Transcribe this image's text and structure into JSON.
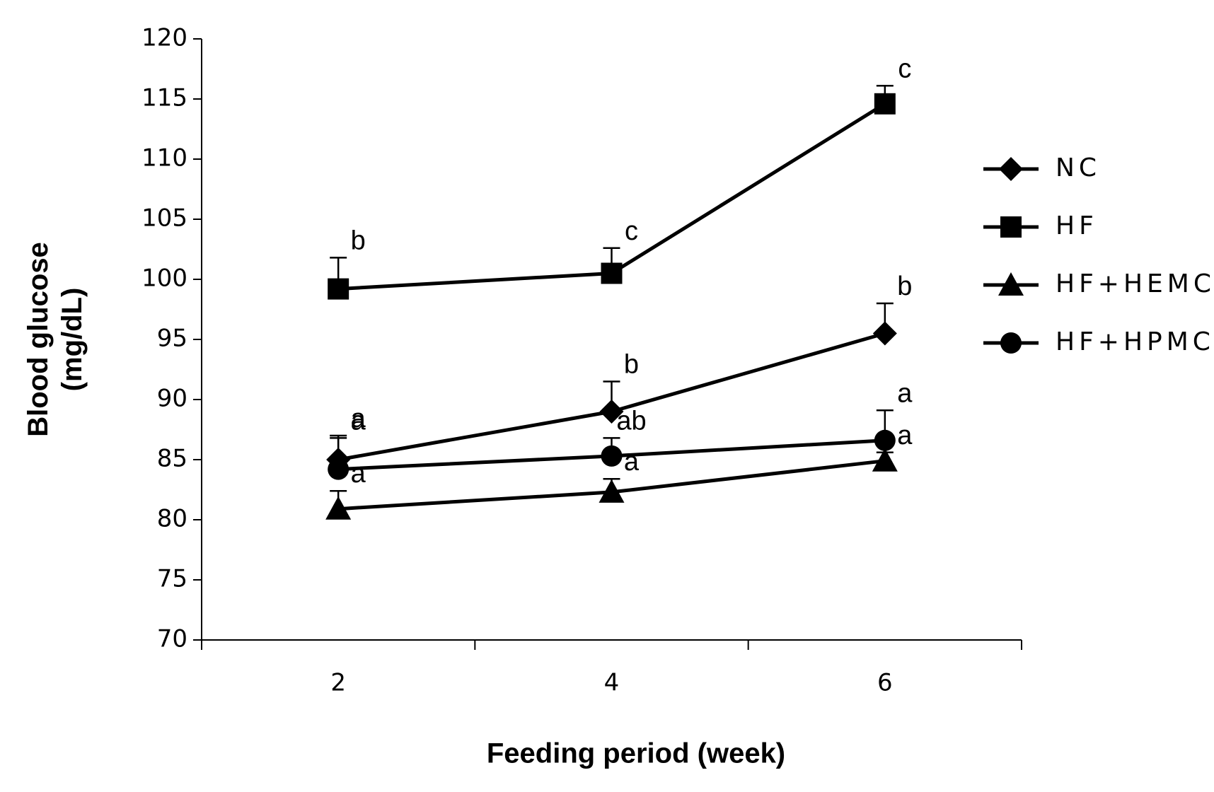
{
  "chart_data": {
    "type": "line",
    "y_label": "Blood glucose\n(mg/dL)",
    "x_label": "Feeding period (week)",
    "categories": [
      "2",
      "4",
      "6"
    ],
    "ylim": [
      70,
      120
    ],
    "yticks": [
      70,
      75,
      80,
      85,
      90,
      95,
      100,
      105,
      110,
      115,
      120
    ],
    "legend": "right",
    "series": [
      {
        "name": "NC",
        "color": "#000000",
        "marker": "diamond",
        "values": [
          85.0,
          89.0,
          95.5
        ],
        "errors": [
          2.0,
          2.5,
          2.5
        ],
        "labels": [
          "a",
          "b",
          "b"
        ]
      },
      {
        "name": "HF",
        "color": "#000000",
        "marker": "square",
        "values": [
          99.2,
          100.5,
          114.6
        ],
        "errors": [
          2.6,
          2.1,
          1.5
        ],
        "labels": [
          "b",
          "c",
          "c"
        ]
      },
      {
        "name": "HF+HEMC",
        "color": "#000000",
        "marker": "triangle",
        "values": [
          80.9,
          82.3,
          84.9
        ],
        "errors": [
          1.5,
          1.1,
          0.7
        ],
        "labels": [
          "a",
          "a",
          "a"
        ]
      },
      {
        "name": "HF+HPMC",
        "color": "#000000",
        "marker": "circle",
        "values": [
          84.2,
          85.3,
          86.6
        ],
        "errors": [
          2.6,
          1.5,
          2.5
        ],
        "labels": [
          "a",
          "ab",
          "a"
        ]
      }
    ]
  }
}
